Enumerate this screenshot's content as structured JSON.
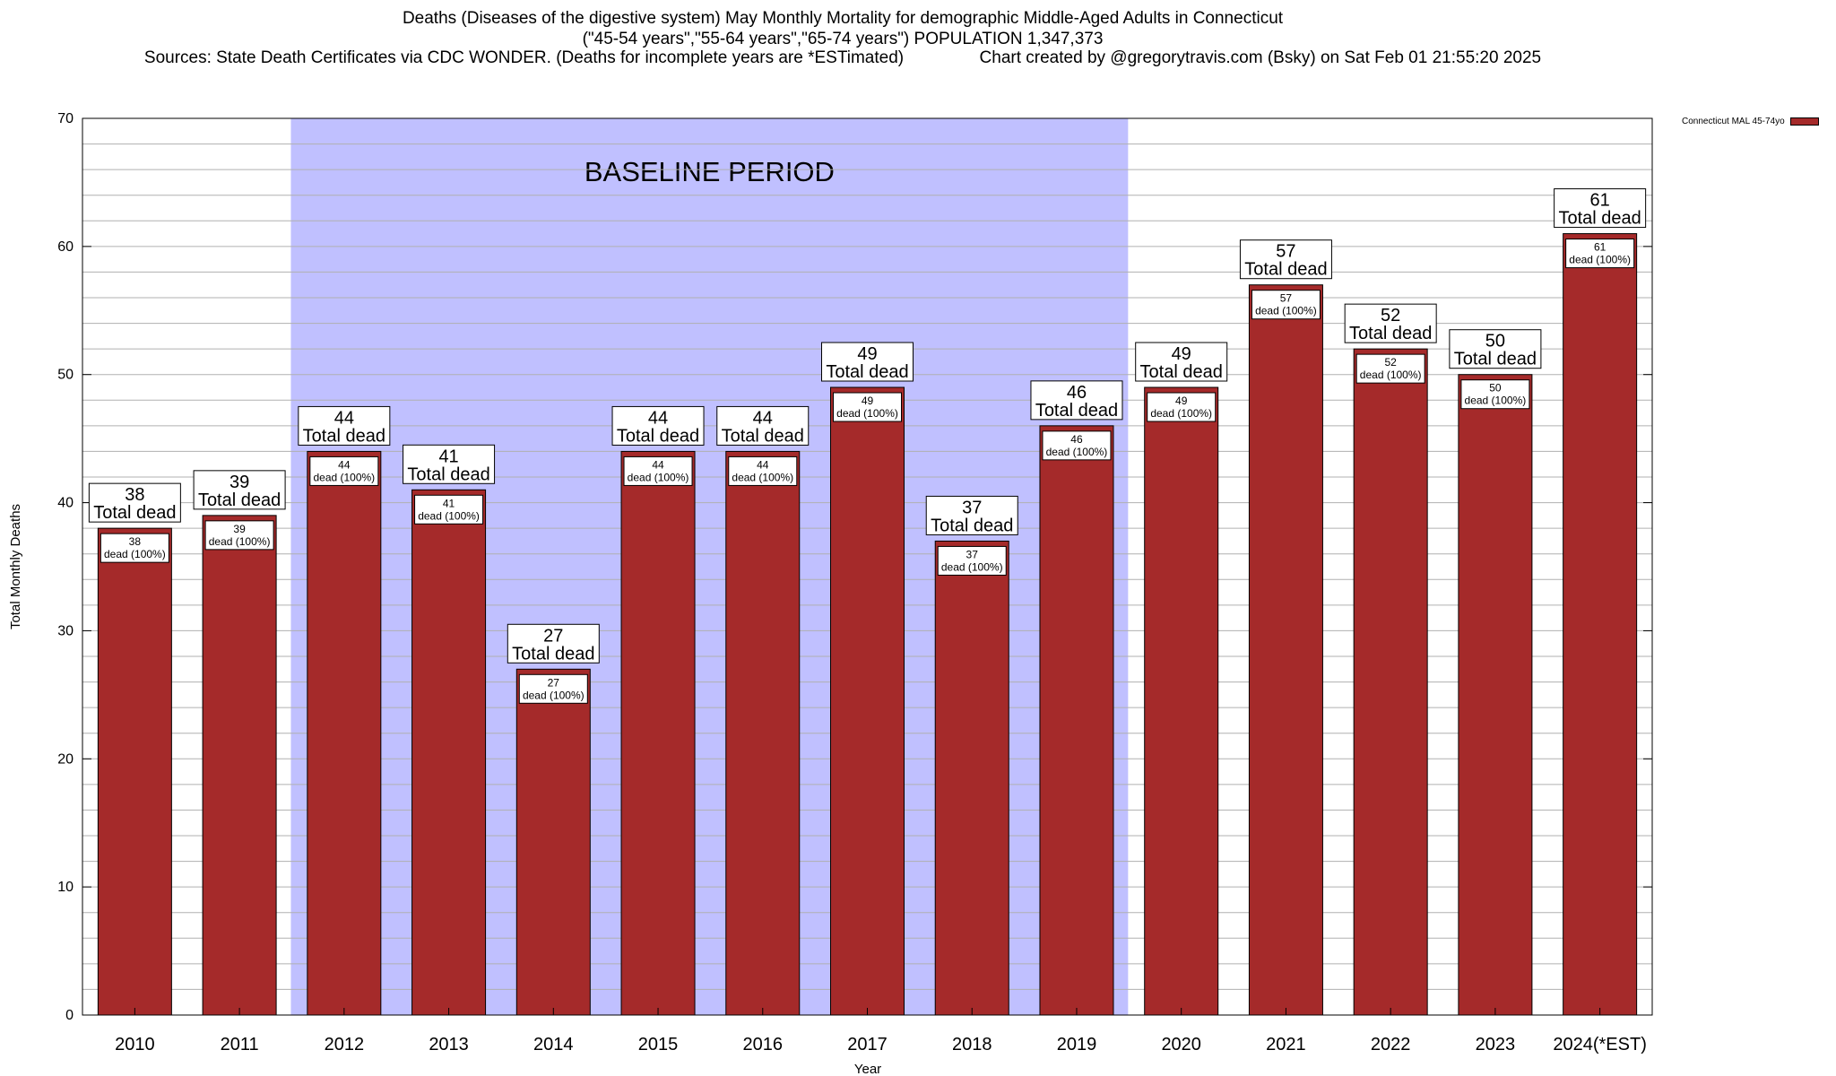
{
  "title_lines": [
    "Deaths (Diseases of the digestive system) May Monthly Mortality for demographic Middle-Aged Adults in Connecticut",
    "(\"45-54 years\",\"55-64 years\",\"65-74 years\") POPULATION 1,347,373",
    "Sources: State Death Certificates via CDC WONDER. (Deaths for incomplete years are *ESTimated)                Chart created by @gregorytravis.com (Bsky) on Sat Feb 01 21:55:20 2025"
  ],
  "colors": {
    "bar": "#a52a2a",
    "baseline_shade": "#c0c0ff",
    "grid": "#b0b0b0"
  },
  "chart_data": {
    "type": "bar",
    "xlabel": "Year",
    "ylabel": "Total Monthly Deaths",
    "ylim": [
      0,
      70
    ],
    "yticks": [
      0,
      10,
      20,
      30,
      40,
      50,
      60,
      70
    ],
    "grid": true,
    "legend_position": "top-right",
    "categories": [
      "2010",
      "2011",
      "2012",
      "2013",
      "2014",
      "2015",
      "2016",
      "2017",
      "2018",
      "2019",
      "2020",
      "2021",
      "2022",
      "2023",
      "2024(*EST)"
    ],
    "series": [
      {
        "name": "Connecticut MAL 45-74yo",
        "values": [
          38,
          39,
          44,
          41,
          27,
          44,
          44,
          49,
          37,
          46,
          49,
          57,
          52,
          50,
          61
        ]
      }
    ],
    "top_label_suffix": "Total dead",
    "inner_label_suffix": "dead (100%)",
    "baseline_period": {
      "label": "BASELINE PERIOD",
      "from": "2012",
      "to": "2019"
    }
  }
}
